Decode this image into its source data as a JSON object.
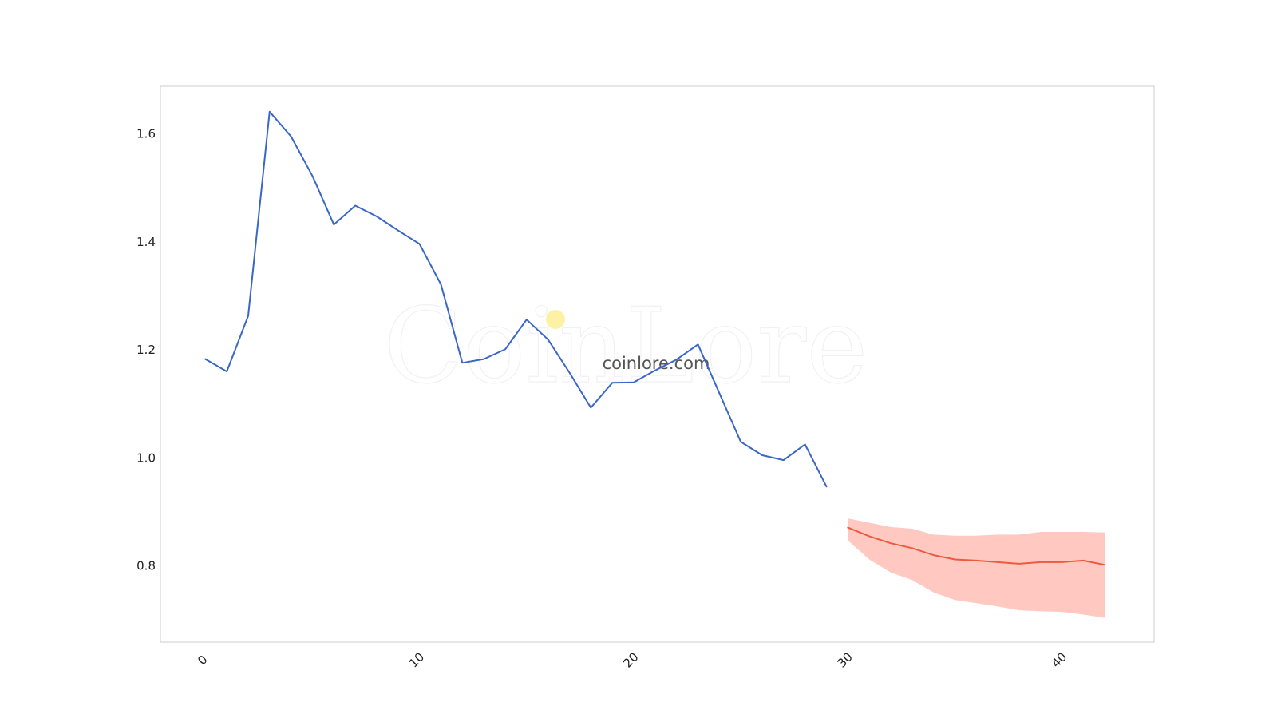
{
  "chart_data": {
    "type": "line",
    "title": "",
    "xlabel": "",
    "ylabel": "",
    "xlim": [
      -2.1,
      44.3
    ],
    "ylim": [
      0.659,
      1.688
    ],
    "grid": false,
    "x_ticks": [
      {
        "value": 0,
        "label": "0"
      },
      {
        "value": 10,
        "label": "10"
      },
      {
        "value": 20,
        "label": "20"
      },
      {
        "value": 30,
        "label": "30"
      },
      {
        "value": 40,
        "label": "40"
      }
    ],
    "y_ticks": [
      {
        "value": 0.8,
        "label": "0.8"
      },
      {
        "value": 1.0,
        "label": "1.0"
      },
      {
        "value": 1.2,
        "label": "1.2"
      },
      {
        "value": 1.4,
        "label": "1.4"
      },
      {
        "value": 1.6,
        "label": "1.6"
      }
    ],
    "series": [
      {
        "kind": "history",
        "color": "#3a66c8",
        "x": [
          0,
          1,
          2,
          3,
          4,
          5,
          6,
          7,
          8,
          9,
          10,
          11,
          12,
          13,
          14,
          15,
          16,
          17,
          18,
          19,
          20,
          21,
          22,
          23,
          24,
          25,
          26,
          27,
          28,
          29
        ],
        "y": [
          1.183,
          1.16,
          1.263,
          1.641,
          1.595,
          1.522,
          1.432,
          1.467,
          1.447,
          1.421,
          1.396,
          1.321,
          1.176,
          1.183,
          1.201,
          1.256,
          1.219,
          1.158,
          1.093,
          1.139,
          1.14,
          1.162,
          1.182,
          1.21,
          1.12,
          1.03,
          1.005,
          0.996,
          1.025,
          0.947
        ]
      },
      {
        "kind": "forecast",
        "color": "#ee5a40",
        "band_color": "#ffc9c2",
        "x": [
          30,
          31,
          32,
          33,
          34,
          35,
          36,
          37,
          38,
          39,
          40,
          41,
          42
        ],
        "y": [
          0.871,
          0.855,
          0.842,
          0.833,
          0.82,
          0.812,
          0.81,
          0.807,
          0.804,
          0.807,
          0.807,
          0.81,
          0.802
        ],
        "lower": [
          0.847,
          0.812,
          0.788,
          0.774,
          0.751,
          0.737,
          0.731,
          0.725,
          0.718,
          0.716,
          0.715,
          0.71,
          0.704
        ],
        "upper": [
          0.888,
          0.88,
          0.872,
          0.869,
          0.858,
          0.856,
          0.856,
          0.858,
          0.858,
          0.863,
          0.863,
          0.863,
          0.862
        ]
      }
    ]
  },
  "watermark": {
    "brand": "CoinLore",
    "site": "coinlore.com",
    "dot_color": "#fdf1a6"
  }
}
